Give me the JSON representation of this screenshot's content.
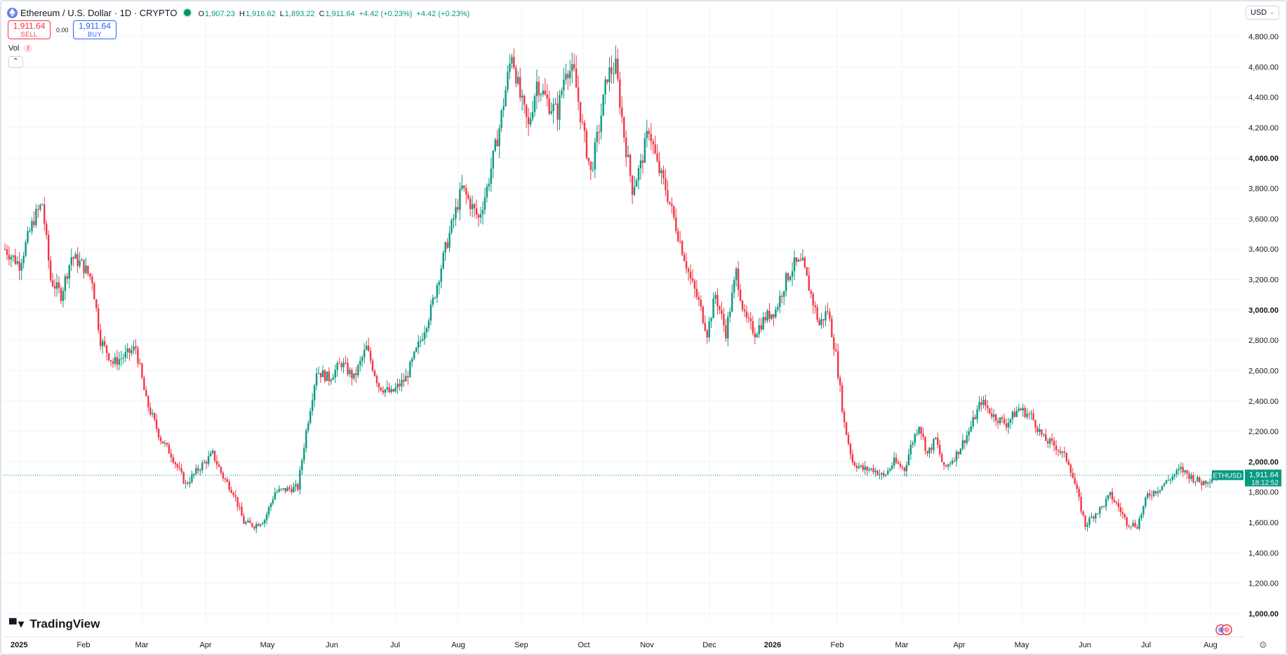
{
  "header": {
    "title": "Ethereum / U.S. Dollar · 1D · CRYPTO",
    "ohlc": [
      {
        "key": "O",
        "value": "1,907.23"
      },
      {
        "key": "H",
        "value": "1,916.62"
      },
      {
        "key": "L",
        "value": "1,893.22"
      },
      {
        "key": "C",
        "value": "1,911.64"
      },
      {
        "key": "",
        "value": "+4.42 (+0.23%)"
      },
      {
        "key": "",
        "value": "+4.42 (+0.23%)"
      }
    ],
    "icon": "ethereum-icon",
    "status_icon": "market-open-dot"
  },
  "trade": {
    "sell_price": "1,911.64",
    "sell_label": "SELL",
    "spread": "0.00",
    "buy_price": "1,911.64",
    "buy_label": "BUY"
  },
  "indicator": {
    "label": "Vol",
    "warn": "!"
  },
  "collapse_label": "⌃",
  "currency": {
    "selected": "USD"
  },
  "brand": {
    "name": "TradingView"
  },
  "colors": {
    "up": "#089981",
    "down": "#f23645",
    "grid": "#f0f3fa",
    "text": "#131722"
  },
  "chart_data": {
    "type": "candlestick",
    "symbol": "ETHUSD",
    "interval": "1D",
    "last_price": "1,911.64",
    "countdown": "18:12:52",
    "ylim": [
      1000,
      4900
    ],
    "y_ticks": [
      "1,000.00",
      "1,200.00",
      "1,400.00",
      "1,600.00",
      "1,800.00",
      "2,000.00",
      "2,200.00",
      "2,400.00",
      "2,600.00",
      "2,800.00",
      "3,000.00",
      "3,200.00",
      "3,400.00",
      "3,600.00",
      "3,800.00",
      "4,000.00",
      "4,200.00",
      "4,400.00",
      "4,600.00",
      "4,800.00"
    ],
    "y_bold_ticks": [
      "1,000.00",
      "2,000.00",
      "3,000.00",
      "4,000.00"
    ],
    "x_labels": [
      "2025",
      "Feb",
      "Mar",
      "Apr",
      "May",
      "Jun",
      "Jul",
      "Aug",
      "Sep",
      "Oct",
      "Nov",
      "Dec",
      "2026",
      "Feb",
      "Mar",
      "Apr",
      "May",
      "Jun",
      "Jul",
      "Aug"
    ],
    "x_bold_labels": [
      "2025",
      "2026"
    ],
    "anchors": [
      {
        "t": 0,
        "v": 3400
      },
      {
        "t": 7,
        "v": 3300
      },
      {
        "t": 14,
        "v": 3600
      },
      {
        "t": 18,
        "v": 3700
      },
      {
        "t": 22,
        "v": 3200
      },
      {
        "t": 27,
        "v": 3100
      },
      {
        "t": 32,
        "v": 3350
      },
      {
        "t": 37,
        "v": 3300
      },
      {
        "t": 42,
        "v": 3200
      },
      {
        "t": 46,
        "v": 2800
      },
      {
        "t": 52,
        "v": 2650
      },
      {
        "t": 58,
        "v": 2700
      },
      {
        "t": 63,
        "v": 2750
      },
      {
        "t": 68,
        "v": 2400
      },
      {
        "t": 75,
        "v": 2150
      },
      {
        "t": 80,
        "v": 2050
      },
      {
        "t": 87,
        "v": 1850
      },
      {
        "t": 93,
        "v": 1950
      },
      {
        "t": 100,
        "v": 2050
      },
      {
        "t": 105,
        "v": 1900
      },
      {
        "t": 110,
        "v": 1800
      },
      {
        "t": 115,
        "v": 1600
      },
      {
        "t": 120,
        "v": 1580
      },
      {
        "t": 125,
        "v": 1620
      },
      {
        "t": 130,
        "v": 1800
      },
      {
        "t": 136,
        "v": 1820
      },
      {
        "t": 141,
        "v": 1830
      },
      {
        "t": 145,
        "v": 2200
      },
      {
        "t": 150,
        "v": 2600
      },
      {
        "t": 156,
        "v": 2550
      },
      {
        "t": 162,
        "v": 2650
      },
      {
        "t": 168,
        "v": 2550
      },
      {
        "t": 174,
        "v": 2750
      },
      {
        "t": 180,
        "v": 2500
      },
      {
        "t": 186,
        "v": 2450
      },
      {
        "t": 193,
        "v": 2550
      },
      {
        "t": 200,
        "v": 2800
      },
      {
        "t": 205,
        "v": 3000
      },
      {
        "t": 212,
        "v": 3400
      },
      {
        "t": 220,
        "v": 3800
      },
      {
        "t": 228,
        "v": 3600
      },
      {
        "t": 232,
        "v": 3800
      },
      {
        "t": 238,
        "v": 4200
      },
      {
        "t": 244,
        "v": 4700
      },
      {
        "t": 248,
        "v": 4400
      },
      {
        "t": 252,
        "v": 4200
      },
      {
        "t": 256,
        "v": 4500
      },
      {
        "t": 262,
        "v": 4350
      },
      {
        "t": 266,
        "v": 4300
      },
      {
        "t": 270,
        "v": 4600
      },
      {
        "t": 274,
        "v": 4550
      },
      {
        "t": 278,
        "v": 4200
      },
      {
        "t": 282,
        "v": 3900
      },
      {
        "t": 286,
        "v": 4200
      },
      {
        "t": 290,
        "v": 4550
      },
      {
        "t": 294,
        "v": 4600
      },
      {
        "t": 298,
        "v": 4150
      },
      {
        "t": 302,
        "v": 3800
      },
      {
        "t": 306,
        "v": 3950
      },
      {
        "t": 310,
        "v": 4200
      },
      {
        "t": 314,
        "v": 3950
      },
      {
        "t": 318,
        "v": 3800
      },
      {
        "t": 322,
        "v": 3600
      },
      {
        "t": 326,
        "v": 3400
      },
      {
        "t": 330,
        "v": 3200
      },
      {
        "t": 334,
        "v": 3050
      },
      {
        "t": 338,
        "v": 2850
      },
      {
        "t": 342,
        "v": 3100
      },
      {
        "t": 347,
        "v": 2850
      },
      {
        "t": 352,
        "v": 3250
      },
      {
        "t": 356,
        "v": 2950
      },
      {
        "t": 361,
        "v": 2850
      },
      {
        "t": 366,
        "v": 2950
      },
      {
        "t": 371,
        "v": 3000
      },
      {
        "t": 376,
        "v": 3200
      },
      {
        "t": 380,
        "v": 3300
      },
      {
        "t": 384,
        "v": 3300
      },
      {
        "t": 388,
        "v": 3100
      },
      {
        "t": 392,
        "v": 2900
      },
      {
        "t": 396,
        "v": 3000
      },
      {
        "t": 400,
        "v": 2700
      },
      {
        "t": 404,
        "v": 2250
      },
      {
        "t": 408,
        "v": 2000
      },
      {
        "t": 413,
        "v": 1950
      },
      {
        "t": 418,
        "v": 1950
      },
      {
        "t": 423,
        "v": 1900
      },
      {
        "t": 428,
        "v": 2000
      },
      {
        "t": 433,
        "v": 1950
      },
      {
        "t": 436,
        "v": 2100
      },
      {
        "t": 440,
        "v": 2250
      },
      {
        "t": 444,
        "v": 2050
      },
      {
        "t": 448,
        "v": 2150
      },
      {
        "t": 452,
        "v": 1950
      },
      {
        "t": 458,
        "v": 2050
      },
      {
        "t": 464,
        "v": 2200
      },
      {
        "t": 470,
        "v": 2400
      },
      {
        "t": 476,
        "v": 2300
      },
      {
        "t": 482,
        "v": 2250
      },
      {
        "t": 488,
        "v": 2350
      },
      {
        "t": 494,
        "v": 2300
      },
      {
        "t": 500,
        "v": 2150
      },
      {
        "t": 506,
        "v": 2100
      },
      {
        "t": 512,
        "v": 2000
      },
      {
        "t": 516,
        "v": 1800
      },
      {
        "t": 520,
        "v": 1580
      },
      {
        "t": 524,
        "v": 1650
      },
      {
        "t": 528,
        "v": 1700
      },
      {
        "t": 532,
        "v": 1780
      },
      {
        "t": 536,
        "v": 1700
      },
      {
        "t": 540,
        "v": 1600
      },
      {
        "t": 545,
        "v": 1580
      },
      {
        "t": 550,
        "v": 1780
      },
      {
        "t": 555,
        "v": 1820
      },
      {
        "t": 560,
        "v": 1880
      },
      {
        "t": 566,
        "v": 1950
      },
      {
        "t": 571,
        "v": 1900
      },
      {
        "t": 576,
        "v": 1860
      },
      {
        "t": 580,
        "v": 1890
      },
      {
        "t": 584,
        "v": 1911.64
      }
    ]
  }
}
